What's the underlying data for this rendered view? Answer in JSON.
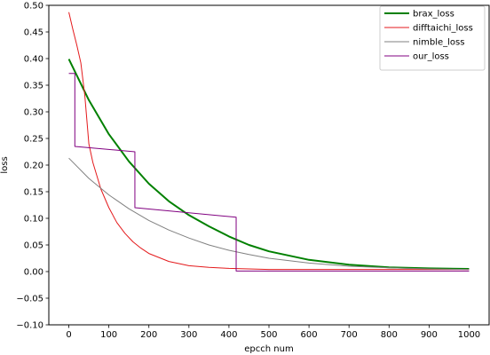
{
  "chart_data": {
    "type": "line",
    "xlabel": "epcch num",
    "ylabel": "loss",
    "xlim": [
      -50,
      1050
    ],
    "ylim": [
      -0.1,
      0.5
    ],
    "xticks": [
      0,
      100,
      200,
      300,
      400,
      500,
      600,
      700,
      800,
      900,
      1000
    ],
    "xtick_labels": [
      "0",
      "100",
      "200",
      "300",
      "400",
      "500",
      "600",
      "700",
      "800",
      "900",
      "1000"
    ],
    "yticks": [
      -0.1,
      -0.05,
      0.0,
      0.05,
      0.1,
      0.15,
      0.2,
      0.25,
      0.3,
      0.35,
      0.4,
      0.45,
      0.5
    ],
    "ytick_labels": [
      "−0.10",
      "−0.05",
      "0.00",
      "0.05",
      "0.10",
      "0.15",
      "0.20",
      "0.25",
      "0.30",
      "0.35",
      "0.40",
      "0.45",
      "0.50"
    ],
    "grid": false,
    "legend_position": "top-right",
    "series": [
      {
        "name": "brax_loss",
        "color": "#008000",
        "line_width": "thick",
        "x": [
          0,
          50,
          100,
          150,
          200,
          250,
          300,
          350,
          400,
          450,
          500,
          600,
          700,
          800,
          900,
          1000
        ],
        "y": [
          0.399,
          0.322,
          0.258,
          0.207,
          0.165,
          0.132,
          0.106,
          0.085,
          0.066,
          0.05,
          0.038,
          0.022,
          0.013,
          0.008,
          0.006,
          0.005
        ]
      },
      {
        "name": "difftaichi_loss",
        "color": "#e41a1c",
        "line_width": "thin",
        "x": [
          0,
          10,
          20,
          30,
          40,
          50,
          60,
          70,
          80,
          100,
          120,
          140,
          160,
          180,
          200,
          250,
          300,
          350,
          400,
          500,
          600,
          700,
          800,
          900,
          1000
        ],
        "y": [
          0.487,
          0.455,
          0.425,
          0.392,
          0.33,
          0.24,
          0.205,
          0.18,
          0.155,
          0.12,
          0.092,
          0.072,
          0.056,
          0.044,
          0.034,
          0.019,
          0.011,
          0.008,
          0.006,
          0.004,
          0.004,
          0.004,
          0.004,
          0.004,
          0.004
        ]
      },
      {
        "name": "nimble_loss",
        "color": "#808080",
        "line_width": "thin",
        "x": [
          0,
          50,
          100,
          150,
          200,
          250,
          300,
          350,
          400,
          450,
          500,
          600,
          700,
          800,
          900,
          1000
        ],
        "y": [
          0.213,
          0.175,
          0.144,
          0.118,
          0.096,
          0.078,
          0.063,
          0.05,
          0.04,
          0.032,
          0.025,
          0.016,
          0.01,
          0.007,
          0.005,
          0.004
        ]
      },
      {
        "name": "our_loss",
        "color": "#800080",
        "line_width": "thin",
        "x": [
          0,
          15,
          15,
          165,
          165,
          418,
          418,
          1000
        ],
        "y": [
          0.372,
          0.372,
          0.235,
          0.225,
          0.12,
          0.102,
          0.001,
          0.001
        ]
      }
    ]
  }
}
